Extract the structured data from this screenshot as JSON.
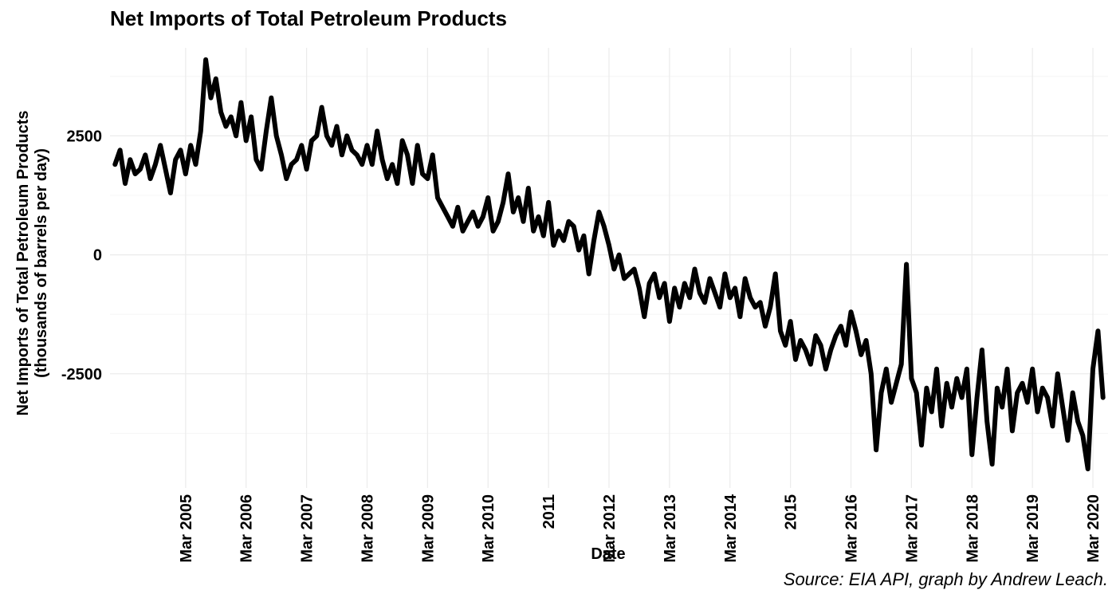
{
  "chart_data": {
    "type": "line",
    "title": "Net Imports of Total Petroleum Products",
    "xlabel": "Date",
    "ylabel": [
      "Net Imports of Total Petroleum Products",
      "(thousands of barrels per day)"
    ],
    "caption": "Source: EIA API, graph by Andrew Leach.",
    "grid": true,
    "xlim": [
      "2003-12",
      "2020-06"
    ],
    "xticks": [
      {
        "value": "2005-03",
        "label": "Mar 2005"
      },
      {
        "value": "2006-03",
        "label": "Mar 2006"
      },
      {
        "value": "2007-03",
        "label": "Mar 2007"
      },
      {
        "value": "2008-03",
        "label": "Mar 2008"
      },
      {
        "value": "2009-03",
        "label": "Mar 2009"
      },
      {
        "value": "2010-03",
        "label": "Mar 2010"
      },
      {
        "value": "2011-03",
        "label": "2011"
      },
      {
        "value": "2012-03",
        "label": "Mar 2012"
      },
      {
        "value": "2013-03",
        "label": "Mar 2013"
      },
      {
        "value": "2014-03",
        "label": "Mar 2014"
      },
      {
        "value": "2015-03",
        "label": "2015"
      },
      {
        "value": "2016-03",
        "label": "Mar 2016"
      },
      {
        "value": "2017-03",
        "label": "Mar 2017"
      },
      {
        "value": "2018-03",
        "label": "Mar 2018"
      },
      {
        "value": "2019-03",
        "label": "Mar 2019"
      },
      {
        "value": "2020-03",
        "label": "Mar 2020"
      }
    ],
    "ylim": [
      -4900,
      4350
    ],
    "yticks": [
      -2500,
      0,
      2500
    ],
    "y_minor_gridlines": [
      -3750,
      -1250,
      1250,
      3750
    ],
    "x": [
      "2004-01",
      "2004-02",
      "2004-03",
      "2004-04",
      "2004-05",
      "2004-06",
      "2004-07",
      "2004-08",
      "2004-09",
      "2004-10",
      "2004-11",
      "2004-12",
      "2005-01",
      "2005-02",
      "2005-03",
      "2005-04",
      "2005-05",
      "2005-06",
      "2005-07",
      "2005-08",
      "2005-09",
      "2005-10",
      "2005-11",
      "2005-12",
      "2006-01",
      "2006-02",
      "2006-03",
      "2006-04",
      "2006-05",
      "2006-06",
      "2006-07",
      "2006-08",
      "2006-09",
      "2006-10",
      "2006-11",
      "2006-12",
      "2007-01",
      "2007-02",
      "2007-03",
      "2007-04",
      "2007-05",
      "2007-06",
      "2007-07",
      "2007-08",
      "2007-09",
      "2007-10",
      "2007-11",
      "2007-12",
      "2008-01",
      "2008-02",
      "2008-03",
      "2008-04",
      "2008-05",
      "2008-06",
      "2008-07",
      "2008-08",
      "2008-09",
      "2008-10",
      "2008-11",
      "2008-12",
      "2009-01",
      "2009-02",
      "2009-03",
      "2009-04",
      "2009-05",
      "2009-06",
      "2009-07",
      "2009-08",
      "2009-09",
      "2009-10",
      "2009-11",
      "2009-12",
      "2010-01",
      "2010-02",
      "2010-03",
      "2010-04",
      "2010-05",
      "2010-06",
      "2010-07",
      "2010-08",
      "2010-09",
      "2010-10",
      "2010-11",
      "2010-12",
      "2011-01",
      "2011-02",
      "2011-03",
      "2011-04",
      "2011-05",
      "2011-06",
      "2011-07",
      "2011-08",
      "2011-09",
      "2011-10",
      "2011-11",
      "2011-12",
      "2012-01",
      "2012-02",
      "2012-03",
      "2012-04",
      "2012-05",
      "2012-06",
      "2012-07",
      "2012-08",
      "2012-09",
      "2012-10",
      "2012-11",
      "2012-12",
      "2013-01",
      "2013-02",
      "2013-03",
      "2013-04",
      "2013-05",
      "2013-06",
      "2013-07",
      "2013-08",
      "2013-09",
      "2013-10",
      "2013-11",
      "2013-12",
      "2014-01",
      "2014-02",
      "2014-03",
      "2014-04",
      "2014-05",
      "2014-06",
      "2014-07",
      "2014-08",
      "2014-09",
      "2014-10",
      "2014-11",
      "2014-12",
      "2015-01",
      "2015-02",
      "2015-03",
      "2015-04",
      "2015-05",
      "2015-06",
      "2015-07",
      "2015-08",
      "2015-09",
      "2015-10",
      "2015-11",
      "2015-12",
      "2016-01",
      "2016-02",
      "2016-03",
      "2016-04",
      "2016-05",
      "2016-06",
      "2016-07",
      "2016-08",
      "2016-09",
      "2016-10",
      "2016-11",
      "2016-12",
      "2017-01",
      "2017-02",
      "2017-03",
      "2017-04",
      "2017-05",
      "2017-06",
      "2017-07",
      "2017-08",
      "2017-09",
      "2017-10",
      "2017-11",
      "2017-12",
      "2018-01",
      "2018-02",
      "2018-03",
      "2018-04",
      "2018-05",
      "2018-06",
      "2018-07",
      "2018-08",
      "2018-09",
      "2018-10",
      "2018-11",
      "2018-12",
      "2019-01",
      "2019-02",
      "2019-03",
      "2019-04",
      "2019-05",
      "2019-06",
      "2019-07",
      "2019-08",
      "2019-09",
      "2019-10",
      "2019-11",
      "2019-12",
      "2020-01",
      "2020-02",
      "2020-03",
      "2020-04",
      "2020-05"
    ],
    "series": [
      {
        "color": "#000000",
        "values": [
          1900,
          2200,
          1500,
          2000,
          1700,
          1800,
          2100,
          1600,
          1900,
          2300,
          1800,
          1300,
          2000,
          2200,
          1700,
          2300,
          1900,
          2600,
          4100,
          3300,
          3700,
          3000,
          2700,
          2900,
          2500,
          3200,
          2400,
          2900,
          2000,
          1800,
          2600,
          3300,
          2500,
          2100,
          1600,
          1900,
          2000,
          2300,
          1800,
          2400,
          2500,
          3100,
          2500,
          2300,
          2700,
          2100,
          2500,
          2200,
          2100,
          1900,
          2300,
          1900,
          2600,
          2000,
          1600,
          1900,
          1500,
          2400,
          2100,
          1500,
          2300,
          1700,
          1600,
          2100,
          1200,
          1000,
          800,
          600,
          1000,
          500,
          700,
          900,
          600,
          800,
          1200,
          500,
          700,
          1100,
          1700,
          900,
          1200,
          700,
          1400,
          500,
          800,
          400,
          1100,
          200,
          500,
          300,
          700,
          600,
          100,
          400,
          -400,
          300,
          900,
          600,
          200,
          -300,
          0,
          -500,
          -400,
          -300,
          -700,
          -1300,
          -600,
          -400,
          -900,
          -600,
          -1400,
          -700,
          -1100,
          -600,
          -900,
          -300,
          -800,
          -1000,
          -500,
          -800,
          -1100,
          -400,
          -900,
          -700,
          -1300,
          -500,
          -900,
          -1100,
          -1000,
          -1500,
          -1100,
          -400,
          -1600,
          -1900,
          -1400,
          -2200,
          -1800,
          -2000,
          -2300,
          -1700,
          -1900,
          -2400,
          -2000,
          -1700,
          -1500,
          -1900,
          -1200,
          -1600,
          -2100,
          -1800,
          -2500,
          -4100,
          -2900,
          -2400,
          -3100,
          -2700,
          -2300,
          -200,
          -2600,
          -2900,
          -4000,
          -2800,
          -3300,
          -2400,
          -3600,
          -2700,
          -3200,
          -2600,
          -3000,
          -2400,
          -4200,
          -3000,
          -2000,
          -3500,
          -4400,
          -2800,
          -3200,
          -2400,
          -3700,
          -2900,
          -2700,
          -3100,
          -2400,
          -3300,
          -2800,
          -3000,
          -3600,
          -2500,
          -3200,
          -3900,
          -2900,
          -3500,
          -3800,
          -4500,
          -2400,
          -1600,
          -3000
        ]
      }
    ]
  }
}
